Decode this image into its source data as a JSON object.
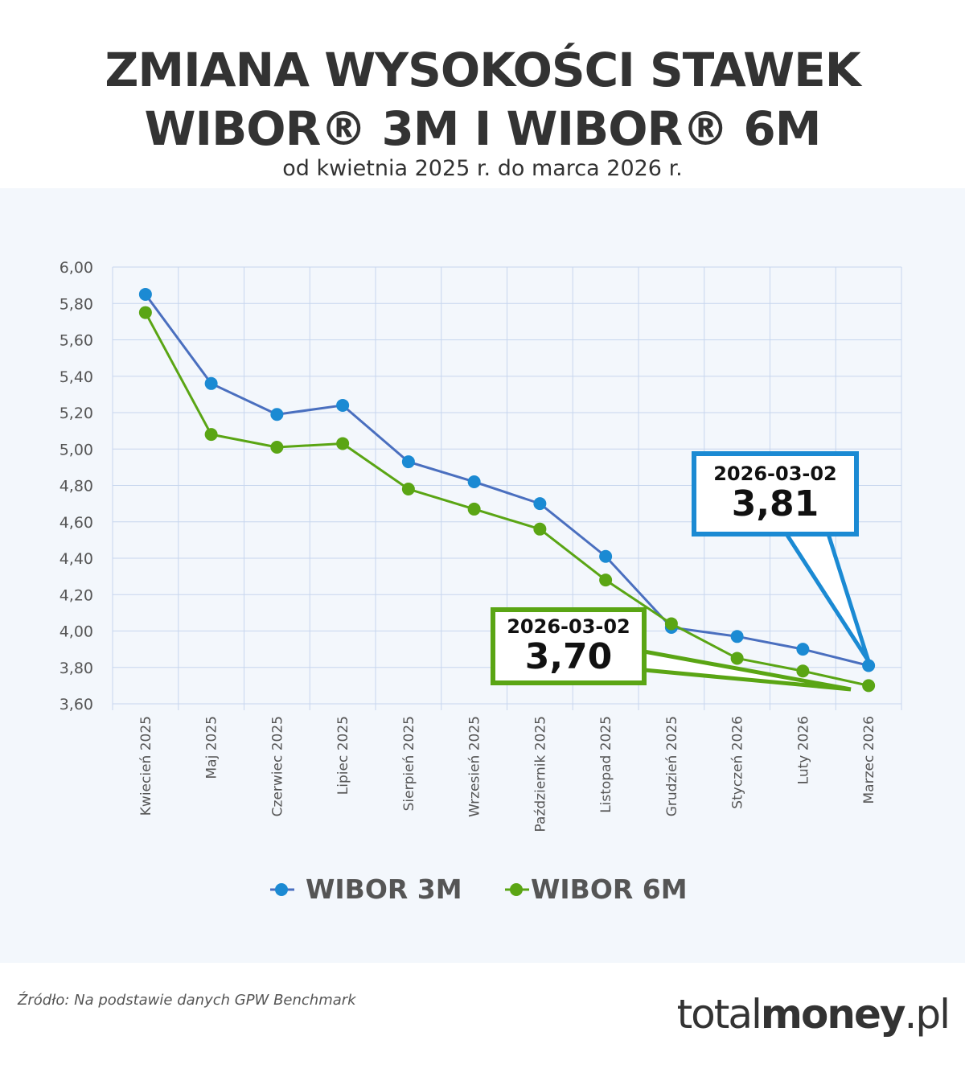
{
  "header": {
    "title_line1": "ZMIANA WYSOKOŚCI STAWEK",
    "title_line2": "WIBOR® 3M I WIBOR® 6M",
    "subtitle": "od kwietnia 2025 r. do marca 2026 r."
  },
  "colors": {
    "wibor3m_line": "#4a6fbf",
    "wibor3m_marker": "#1b8ad3",
    "wibor6m": "#5aa514",
    "grid": "#c7d6ee",
    "panel_bg": "#f3f7fc"
  },
  "chart_data": {
    "type": "line",
    "title": "ZMIANA WYSOKOŚCI STAWEK WIBOR® 3M I WIBOR® 6M",
    "subtitle": "od kwietnia 2025 r. do marca 2026 r.",
    "xlabel": "",
    "ylabel": "",
    "ylim": [
      3.6,
      6.0
    ],
    "yticks": [
      "6,00",
      "5,80",
      "5,60",
      "5,40",
      "5,20",
      "5,00",
      "4,80",
      "4,60",
      "4,40",
      "4,20",
      "4,00",
      "3,80",
      "3,60"
    ],
    "grid": true,
    "legend_position": "bottom",
    "categories": [
      "Kwiecień 2025",
      "Maj 2025",
      "Czerwiec 2025",
      "Lipiec 2025",
      "Sierpień 2025",
      "Wrzesień 2025",
      "Październik 2025",
      "Listopad 2025",
      "Grudzień 2025",
      "Styczeń 2026",
      "Luty 2026",
      "Marzec 2026"
    ],
    "series": [
      {
        "name": "WIBOR 3M",
        "values": [
          5.85,
          5.36,
          5.19,
          5.24,
          4.93,
          4.82,
          4.7,
          4.41,
          4.02,
          3.97,
          3.9,
          3.81
        ]
      },
      {
        "name": "WIBOR 6M",
        "values": [
          5.75,
          5.08,
          5.01,
          5.03,
          4.78,
          4.67,
          4.56,
          4.28,
          4.04,
          3.85,
          3.78,
          3.7
        ]
      }
    ],
    "annotations": [
      {
        "series": "WIBOR 3M",
        "date": "2026-03-02",
        "value": "3,81"
      },
      {
        "series": "WIBOR 6M",
        "date": "2026-03-02",
        "value": "3,70"
      }
    ]
  },
  "legend": {
    "items": [
      {
        "label": "WIBOR 3M"
      },
      {
        "label": "WIBOR 6M"
      }
    ]
  },
  "callouts": {
    "wibor3m": {
      "date": "2026-03-02",
      "value": "3,81"
    },
    "wibor6m": {
      "date": "2026-03-02",
      "value": "3,70"
    }
  },
  "footer": {
    "source": "Źródło: Na podstawie danych GPW Benchmark",
    "brand_light": "total",
    "brand_bold": "money",
    "brand_suffix": ".pl"
  }
}
